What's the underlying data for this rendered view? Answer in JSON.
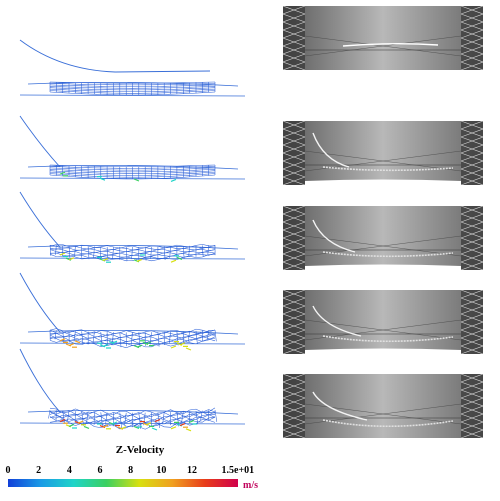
{
  "legend": {
    "title": "Z-Velocity",
    "unit": "m/s",
    "ticks": [
      "0",
      "2",
      "4",
      "6",
      "8",
      "10",
      "12",
      "1.5e+01"
    ],
    "tick_values": [
      0,
      2,
      4,
      6,
      8,
      10,
      12,
      15
    ],
    "range": [
      0,
      15
    ],
    "colormap": [
      "#1240d8",
      "#1a9be6",
      "#1fd4c8",
      "#3bd060",
      "#d8e010",
      "#f0a020",
      "#e83c1a",
      "#d0004c"
    ]
  },
  "panels": [
    {
      "stage": 1
    },
    {
      "stage": 2
    },
    {
      "stage": 3
    },
    {
      "stage": 4
    },
    {
      "stage": 5
    }
  ],
  "colors": {
    "mesh": "#2c60d8",
    "cable": "#3a6fd8",
    "photo_bg": "#7a7a7a"
  }
}
